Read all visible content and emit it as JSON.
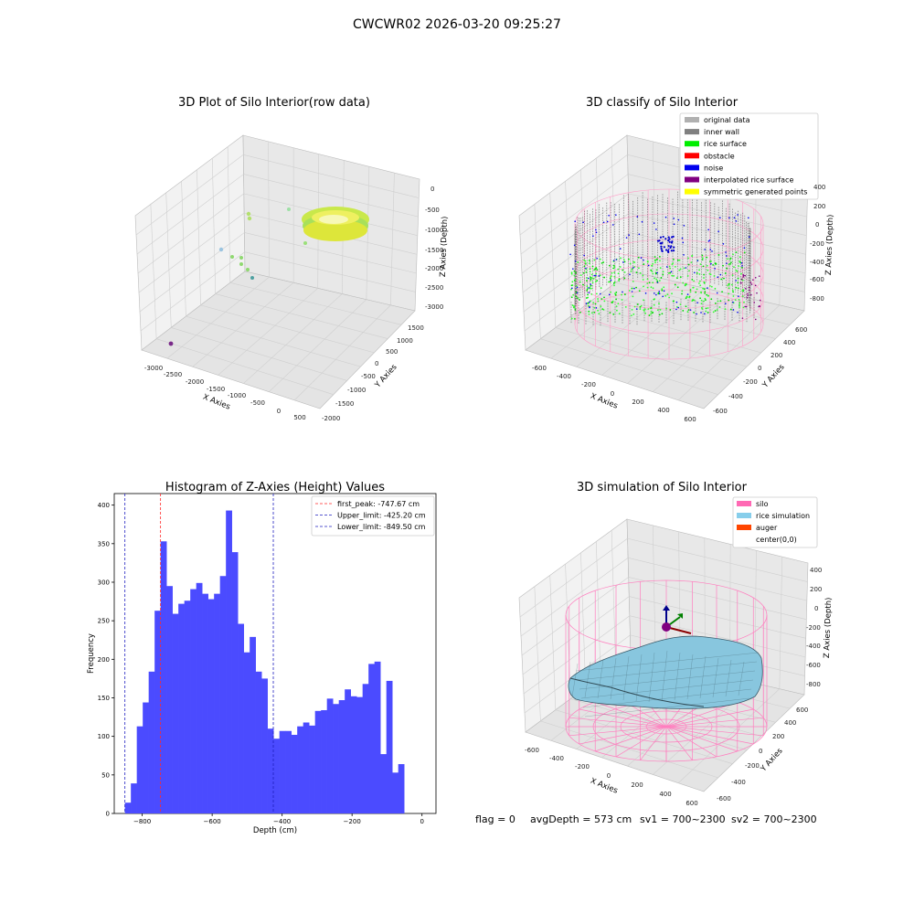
{
  "figure_title": "CWCWR02 2026-03-20 09:25:27",
  "footer": {
    "flag": "flag = 0",
    "avg_depth": "avgDepth = 573 cm",
    "sv1": "sv1 = 700~2300",
    "sv2": "sv2 = 700~2300"
  },
  "chart_data": [
    {
      "type": "scatter",
      "title": "3D Plot of Silo Interior(row data)",
      "xlabel": "X Axies",
      "ylabel": "Y Axies",
      "zlabel": "Z Axies (Depth)",
      "x_ticks": [
        "-3000",
        "-2500",
        "-2000",
        "-1500",
        "-1000",
        "-500",
        "0",
        "500"
      ],
      "y_ticks": [
        "-2000",
        "-1500",
        "-1000",
        "-500",
        "0",
        "500",
        "1000",
        "1500"
      ],
      "z_ticks": [
        "0",
        "-500",
        "-1000",
        "-1500",
        "-2000",
        "-2500",
        "-3000"
      ]
    },
    {
      "type": "scatter",
      "title": "3D classify of Silo Interior",
      "xlabel": "X Axies",
      "ylabel": "Y Axies",
      "zlabel": "Z Axies (Depth)",
      "x_ticks": [
        "-600",
        "-400",
        "-200",
        "0",
        "200",
        "400",
        "600"
      ],
      "y_ticks": [
        "-600",
        "-400",
        "-200",
        "0",
        "200",
        "400",
        "600"
      ],
      "z_ticks": [
        "200",
        "0",
        "-200",
        "-400",
        "-600",
        "-800"
      ],
      "z_top_label": "400",
      "legend": [
        {
          "label": "original data",
          "color": "#b0b0b0"
        },
        {
          "label": "inner wall",
          "color": "#808080"
        },
        {
          "label": "rice surface",
          "color": "#00ee00"
        },
        {
          "label": "obstacle",
          "color": "#ff0000"
        },
        {
          "label": "noise",
          "color": "#0000ee"
        },
        {
          "label": "interpolated rice surface",
          "color": "#800080"
        },
        {
          "label": "symmetric generated points",
          "color": "#ffff00"
        }
      ]
    },
    {
      "type": "bar",
      "title": "Histogram of Z-Axies (Height) Values",
      "xlabel": "Depth (cm)",
      "ylabel": "Frequency",
      "xlim": [
        -880,
        40
      ],
      "ylim": [
        0,
        415
      ],
      "x_ticks": [
        -800,
        -600,
        -400,
        -200,
        0
      ],
      "x_tick_labels": [
        "−800",
        "−600",
        "−400",
        "−200",
        "0"
      ],
      "y_ticks": [
        0,
        50,
        100,
        150,
        200,
        250,
        300,
        350,
        400
      ],
      "bin_start": -849.5,
      "bin_width": 16.99,
      "values": [
        14,
        39,
        113,
        144,
        184,
        263,
        353,
        295,
        259,
        272,
        276,
        291,
        299,
        285,
        278,
        285,
        308,
        393,
        339,
        246,
        209,
        229,
        184,
        175,
        110,
        97,
        107,
        107,
        102,
        113,
        118,
        114,
        133,
        134,
        149,
        142,
        147,
        161,
        152,
        151,
        168,
        194,
        197,
        77,
        172,
        53,
        64
      ],
      "bar_color": "#4b4bff",
      "legend_placement": "top-right",
      "lines": [
        {
          "label": "first_peak: -747.67 cm",
          "x": -747.67,
          "color": "#ff2a2a"
        },
        {
          "label": "Upper_limit: -425.20 cm",
          "x": -425.2,
          "color": "#2020c0"
        },
        {
          "label": "Lower_limit: -849.50 cm",
          "x": -849.5,
          "color": "#2020c0"
        }
      ]
    },
    {
      "type": "scatter",
      "title": "3D simulation of Silo Interior",
      "xlabel": "X Axies",
      "ylabel": "Y Axies",
      "zlabel": "Z Axies (Depth)",
      "x_ticks": [
        "-600",
        "-400",
        "-200",
        "0",
        "200",
        "400",
        "600"
      ],
      "y_ticks": [
        "-600",
        "-400",
        "-200",
        "0",
        "200",
        "400",
        "600"
      ],
      "z_ticks": [
        "400",
        "200",
        "0",
        "-200",
        "-400",
        "-600",
        "-800"
      ],
      "legend": [
        {
          "label": "silo",
          "color": "#ff69b4"
        },
        {
          "label": "rice simulation",
          "color": "#87ceeb"
        },
        {
          "label": "auger",
          "color": "#ff4500"
        },
        {
          "label": "center(0,0)",
          "color": "#ffffff"
        }
      ]
    }
  ]
}
